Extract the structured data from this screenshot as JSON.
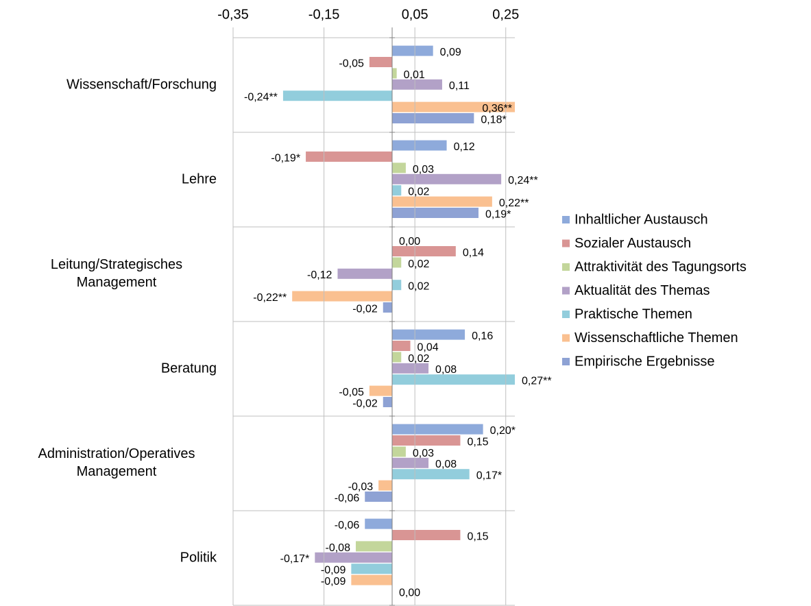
{
  "chart_data": {
    "type": "bar",
    "orientation": "horizontal",
    "categories": [
      "Wissenschaft/Forschung",
      "Lehre",
      "Leitung/Strategisches Management",
      "Beratung",
      "Administration/Operatives Management",
      "Politik"
    ],
    "xlim": [
      -0.35,
      0.27
    ],
    "xticks": [
      {
        "value": -0.35,
        "label": "-0,35"
      },
      {
        "value": -0.15,
        "label": "-0,15"
      },
      {
        "value": 0.05,
        "label": "0,05"
      },
      {
        "value": 0.25,
        "label": "0,25"
      }
    ],
    "grid": true,
    "legend": "right",
    "series": [
      {
        "name": "Inhaltlicher Austausch",
        "color": "#8eaadb",
        "values": [
          0.09,
          0.12,
          0.0,
          0.16,
          0.2,
          -0.06
        ],
        "value_labels": [
          "0,09",
          "0,12",
          "0,00",
          "0,16",
          "0,20*",
          "-0,06"
        ]
      },
      {
        "name": "Sozialer Austausch",
        "color": "#d99594",
        "values": [
          -0.05,
          -0.19,
          0.14,
          0.04,
          0.15,
          0.15
        ],
        "value_labels": [
          "-0,05",
          "-0,19*",
          "0,14",
          "0,04",
          "0,15",
          "0,15"
        ]
      },
      {
        "name": "Attraktivität des Tagungsorts",
        "color": "#c3d69b",
        "values": [
          0.01,
          0.03,
          0.02,
          0.02,
          0.03,
          -0.08
        ],
        "value_labels": [
          "0,01",
          "0,03",
          "0,02",
          "0,02",
          "0,03",
          "-0,08"
        ]
      },
      {
        "name": "Aktualität des Themas",
        "color": "#b2a1c7",
        "values": [
          0.11,
          0.24,
          -0.12,
          0.08,
          0.08,
          -0.17
        ],
        "value_labels": [
          "0,11",
          "0,24**",
          "-0,12",
          "0,08",
          "0,08",
          "-0,17*"
        ]
      },
      {
        "name": "Praktische Themen",
        "color": "#92cddc",
        "values": [
          -0.24,
          0.02,
          0.02,
          0.27,
          0.17,
          -0.09
        ],
        "value_labels": [
          "-0,24**",
          "0,02",
          "0,02",
          "0,27**",
          "0,17*",
          "-0,09"
        ]
      },
      {
        "name": "Wissenschaftliche Themen",
        "color": "#fac090",
        "values": [
          0.36,
          0.22,
          -0.22,
          -0.05,
          -0.03,
          -0.09
        ],
        "value_labels": [
          "0,36**",
          "0,22**",
          "-0,22**",
          "-0,05",
          "-0,03",
          "-0,09"
        ]
      },
      {
        "name": "Empirische Ergebnisse",
        "color": "#8ea2d4",
        "values": [
          0.18,
          0.19,
          -0.02,
          -0.02,
          -0.06,
          0.0
        ],
        "value_labels": [
          "0,18*",
          "0,19*",
          "-0,02",
          "-0,02",
          "-0,06",
          "0,00"
        ]
      }
    ]
  }
}
